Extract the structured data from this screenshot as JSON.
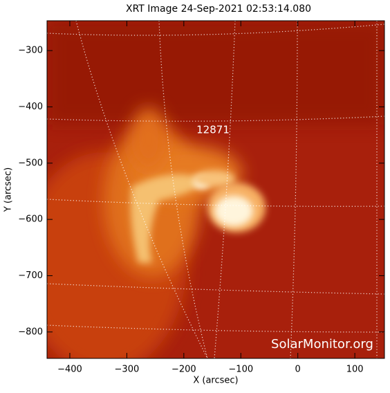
{
  "chart_data": {
    "type": "image",
    "title": "XRT Image 24-Sep-2021 02:53:14.080",
    "x_label": "X (arcsec)",
    "y_label": "Y (arcsec)",
    "annotation": "12871",
    "watermark": "SolarMonitor.org",
    "xlim": [
      -440,
      152
    ],
    "ylim": [
      -847,
      -247
    ],
    "xticks": [
      {
        "value": -400,
        "label": "−400"
      },
      {
        "value": -300,
        "label": "−300"
      },
      {
        "value": -200,
        "label": "−200"
      },
      {
        "value": -100,
        "label": "−100"
      },
      0,
      100
    ],
    "yticks": [
      {
        "value": -300,
        "label": "−300"
      },
      {
        "value": -400,
        "label": "−400"
      },
      {
        "value": -500,
        "label": "−500"
      },
      {
        "value": -600,
        "label": "−600"
      },
      {
        "value": -700,
        "label": "−700"
      },
      {
        "value": -800,
        "label": "−800"
      }
    ]
  }
}
